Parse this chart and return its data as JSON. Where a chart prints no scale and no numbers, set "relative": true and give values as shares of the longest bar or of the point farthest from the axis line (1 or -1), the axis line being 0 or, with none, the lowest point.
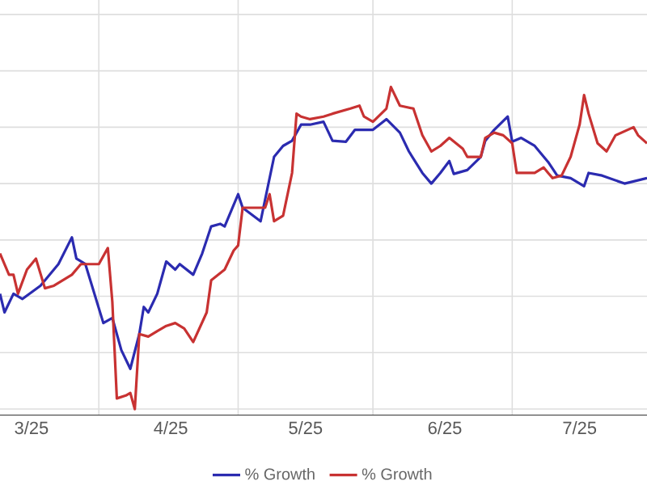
{
  "chart_data": {
    "type": "line",
    "relative": true,
    "grid": true,
    "legend": "bottom",
    "marker": "none",
    "line_style": "solid",
    "xlim": [
      "2025-02-22",
      "2025-07-16"
    ],
    "xticks": [
      {
        "value": "2025-03-01",
        "label": "3/25"
      },
      {
        "value": "2025-03-16",
        "label": null
      },
      {
        "value": "2025-04-01",
        "label": "4/25"
      },
      {
        "value": "2025-04-16",
        "label": null
      },
      {
        "value": "2025-05-01",
        "label": "5/25"
      },
      {
        "value": "2025-05-16",
        "label": null
      },
      {
        "value": "2025-06-01",
        "label": "6/25"
      },
      {
        "value": "2025-06-16",
        "label": null
      },
      {
        "value": "2025-07-01",
        "label": "7/25"
      }
    ],
    "series": [
      {
        "name": "% Growth",
        "color": "#2b2bb0",
        "x": [
          "2025-02-22",
          "2025-02-23",
          "2025-02-25",
          "2025-02-27",
          "2025-03-03",
          "2025-03-07",
          "2025-03-10",
          "2025-03-11",
          "2025-03-13",
          "2025-03-17",
          "2025-03-19",
          "2025-03-21",
          "2025-03-23",
          "2025-03-25",
          "2025-03-26",
          "2025-03-27",
          "2025-03-29",
          "2025-03-31",
          "2025-04-02",
          "2025-04-03",
          "2025-04-06",
          "2025-04-08",
          "2025-04-10",
          "2025-04-12",
          "2025-04-13",
          "2025-04-16",
          "2025-04-17",
          "2025-04-21",
          "2025-04-22",
          "2025-04-24",
          "2025-04-26",
          "2025-04-28",
          "2025-04-30",
          "2025-05-02",
          "2025-05-05",
          "2025-05-07",
          "2025-05-10",
          "2025-05-12",
          "2025-05-16",
          "2025-05-19",
          "2025-05-22",
          "2025-05-24",
          "2025-05-27",
          "2025-05-29",
          "2025-05-31",
          "2025-06-02",
          "2025-06-03",
          "2025-06-06",
          "2025-06-09",
          "2025-06-10",
          "2025-06-12",
          "2025-06-15",
          "2025-06-16",
          "2025-06-18",
          "2025-06-21",
          "2025-06-24",
          "2025-06-26",
          "2025-06-29",
          "2025-07-02",
          "2025-07-03",
          "2025-07-06",
          "2025-07-11",
          "2025-07-16"
        ],
        "values": [
          0.358,
          0.3,
          0.358,
          0.342,
          0.383,
          0.45,
          0.533,
          0.467,
          0.45,
          0.267,
          0.283,
          0.183,
          0.125,
          0.233,
          0.317,
          0.3,
          0.358,
          0.458,
          0.433,
          0.45,
          0.417,
          0.483,
          0.567,
          0.575,
          0.567,
          0.667,
          0.625,
          0.583,
          0.65,
          0.783,
          0.817,
          0.833,
          0.883,
          0.883,
          0.892,
          0.833,
          0.83,
          0.867,
          0.867,
          0.9,
          0.858,
          0.8,
          0.733,
          0.7,
          0.733,
          0.77,
          0.73,
          0.742,
          0.783,
          0.833,
          0.867,
          0.908,
          0.83,
          0.842,
          0.817,
          0.767,
          0.725,
          0.717,
          0.692,
          0.733,
          0.725,
          0.7,
          0.717
        ]
      },
      {
        "name": "% Growth",
        "color": "#c83232",
        "x": [
          "2025-02-22",
          "2025-02-24",
          "2025-02-25",
          "2025-02-26",
          "2025-02-28",
          "2025-03-02",
          "2025-03-04",
          "2025-03-06",
          "2025-03-10",
          "2025-03-12",
          "2025-03-16",
          "2025-03-18",
          "2025-03-19",
          "2025-03-20",
          "2025-03-22",
          "2025-03-23",
          "2025-03-24",
          "2025-03-25",
          "2025-03-27",
          "2025-03-29",
          "2025-03-31",
          "2025-04-02",
          "2025-04-04",
          "2025-04-06",
          "2025-04-09",
          "2025-04-10",
          "2025-04-13",
          "2025-04-15",
          "2025-04-16",
          "2025-04-17",
          "2025-04-22",
          "2025-04-23",
          "2025-04-24",
          "2025-04-26",
          "2025-04-28",
          "2025-04-29",
          "2025-04-30",
          "2025-05-02",
          "2025-05-05",
          "2025-05-07",
          "2025-05-11",
          "2025-05-13",
          "2025-05-14",
          "2025-05-16",
          "2025-05-19",
          "2025-05-20",
          "2025-05-22",
          "2025-05-25",
          "2025-05-27",
          "2025-05-29",
          "2025-05-31",
          "2025-06-02",
          "2025-06-05",
          "2025-06-06",
          "2025-06-09",
          "2025-06-10",
          "2025-06-12",
          "2025-06-14",
          "2025-06-16",
          "2025-06-17",
          "2025-06-21",
          "2025-06-23",
          "2025-06-24",
          "2025-06-25",
          "2025-06-27",
          "2025-06-29",
          "2025-07-01",
          "2025-07-02",
          "2025-07-03",
          "2025-07-05",
          "2025-07-07",
          "2025-07-09",
          "2025-07-13",
          "2025-07-14",
          "2025-07-16"
        ],
        "values": [
          0.483,
          0.417,
          0.417,
          0.358,
          0.433,
          0.467,
          0.375,
          0.383,
          0.417,
          0.45,
          0.45,
          0.5,
          0.333,
          0.033,
          0.042,
          0.05,
          0,
          0.233,
          0.225,
          0.242,
          0.258,
          0.267,
          0.25,
          0.208,
          0.3,
          0.4,
          0.433,
          0.492,
          0.508,
          0.625,
          0.625,
          0.667,
          0.583,
          0.6,
          0.733,
          0.917,
          0.908,
          0.9,
          0.908,
          0.917,
          0.933,
          0.942,
          0.908,
          0.892,
          0.933,
          1,
          0.942,
          0.933,
          0.85,
          0.8,
          0.817,
          0.842,
          0.808,
          0.783,
          0.783,
          0.842,
          0.858,
          0.85,
          0.825,
          0.733,
          0.733,
          0.75,
          0.733,
          0.717,
          0.725,
          0.783,
          0.883,
          0.975,
          0.917,
          0.825,
          0.8,
          0.85,
          0.875,
          0.85,
          0.825
        ]
      }
    ]
  }
}
